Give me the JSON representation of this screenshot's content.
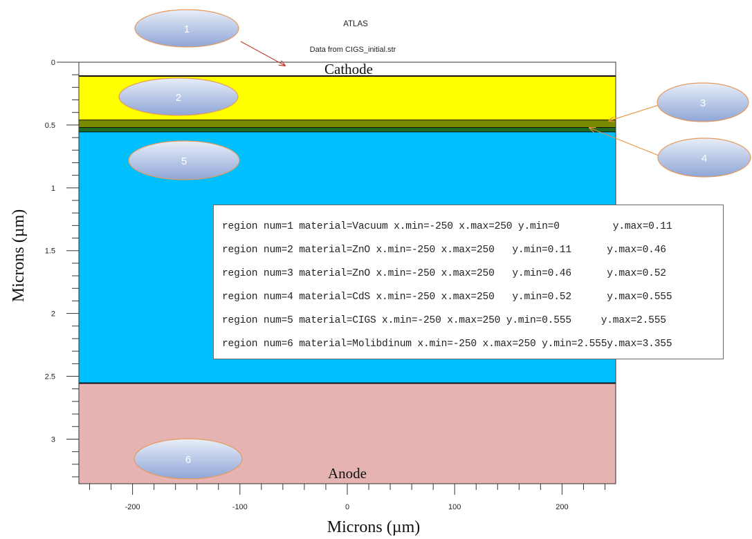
{
  "title": "ATLAS",
  "subtitle": "Data from CIGS_initial.str",
  "layer_labels": {
    "top": "Cathode",
    "bottom": "Anode"
  },
  "axes": {
    "ylabel": "Microns (µm)",
    "xlabel": "Microns (µm)",
    "y_ticks": [
      "0",
      "0.5",
      "1",
      "1.5",
      "2",
      "2.5",
      "3"
    ],
    "x_ticks": [
      "-200",
      "-100",
      "0",
      "100",
      "200"
    ],
    "xlim": [
      -250,
      250
    ],
    "ylim": [
      0,
      3.355
    ],
    "y_direction": "down"
  },
  "layers": [
    {
      "num": 1,
      "material": "Vacuum",
      "y_min": 0,
      "y_max": 0.11,
      "color": "#ffffff"
    },
    {
      "num": 2,
      "material": "ZnO",
      "y_min": 0.11,
      "y_max": 0.46,
      "color": "#ffff00"
    },
    {
      "num": 3,
      "material": "ZnO",
      "y_min": 0.46,
      "y_max": 0.52,
      "color": "#7a8a00"
    },
    {
      "num": 4,
      "material": "CdS",
      "y_min": 0.52,
      "y_max": 0.555,
      "color": "#1f6b1f"
    },
    {
      "num": 5,
      "material": "CIGS",
      "y_min": 0.555,
      "y_max": 2.555,
      "color": "#00bfff"
    },
    {
      "num": 6,
      "material": "Molibdinum",
      "y_min": 2.555,
      "y_max": 3.355,
      "color": "#e6b3b3"
    }
  ],
  "callouts": [
    "1",
    "2",
    "3",
    "4",
    "5",
    "6"
  ],
  "region_lines": [
    "region num=1 material=Vacuum x.min=-250 x.max=250 y.min=0         y.max=0.11",
    "region num=2 material=ZnO x.min=-250 x.max=250   y.min=0.11      y.max=0.46",
    "region num=3 material=ZnO x.min=-250 x.max=250   y.min=0.46      y.max=0.52",
    "region num=4 material=CdS x.min=-250 x.max=250   y.min=0.52      y.max=0.555",
    "region num=5 material=CIGS x.min=-250 x.max=250 y.min=0.555     y.max=2.555",
    "region num=6 material=Molibdinum x.min=-250 x.max=250 y.min=2.555y.max=3.355"
  ]
}
